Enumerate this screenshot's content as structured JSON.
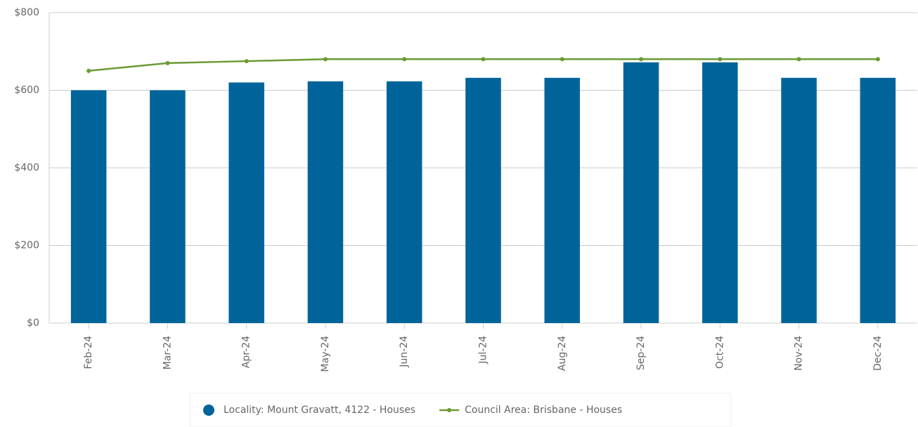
{
  "chart_data": {
    "type": "bar-line",
    "categories": [
      "Feb-24",
      "Mar-24",
      "Apr-24",
      "May-24",
      "Jun-24",
      "Jul-24",
      "Aug-24",
      "Sep-24",
      "Oct-24",
      "Nov-24",
      "Dec-24"
    ],
    "series": [
      {
        "name": "Locality: Mount Gravatt, 4122 - Houses",
        "type": "bar",
        "color": "#00649a",
        "values": [
          600,
          600,
          620,
          623,
          623,
          632,
          632,
          672,
          672,
          632,
          632
        ]
      },
      {
        "name": "Council Area: Brisbane - Houses",
        "type": "line",
        "color": "#6b9a33",
        "values": [
          650,
          670,
          675,
          680,
          680,
          680,
          680,
          680,
          680,
          680,
          680
        ]
      }
    ],
    "ylim": [
      0,
      800
    ],
    "yticks": [
      {
        "value": 0,
        "label": "$0"
      },
      {
        "value": 200,
        "label": "$200"
      },
      {
        "value": 400,
        "label": "$400"
      },
      {
        "value": 600,
        "label": "$600"
      },
      {
        "value": 800,
        "label": "$800"
      }
    ],
    "grid": true,
    "legend": "bottom"
  }
}
